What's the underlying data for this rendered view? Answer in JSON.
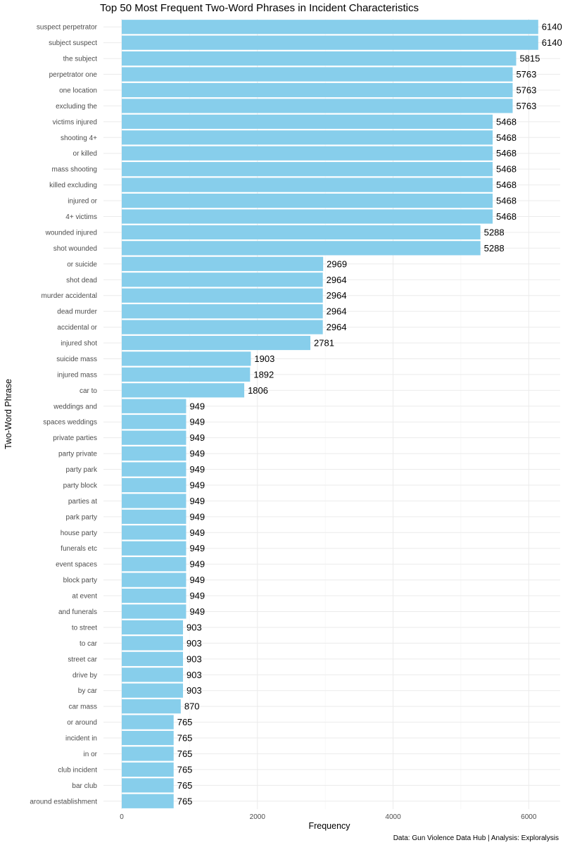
{
  "chart_data": {
    "type": "bar",
    "orientation": "horizontal",
    "title": "Top 50 Most Frequent Two-Word Phrases in Incident Characteristics",
    "xlabel": "Frequency",
    "ylabel": "Two-Word Phrase",
    "caption": "Data: Gun Violence Data Hub | Analysis: Exploralysis",
    "xlim": [
      0,
      6450
    ],
    "x_ticks": [
      0,
      2000,
      4000,
      6000
    ],
    "x_tick_labels": [
      "0",
      "2000",
      "4000",
      "6000"
    ],
    "bar_color": "#87ceeb",
    "grid": true,
    "categories": [
      "suspect perpetrator",
      "subject suspect",
      "the subject",
      "perpetrator one",
      "one location",
      "excluding the",
      "victims injured",
      "shooting 4+",
      "or killed",
      "mass shooting",
      "killed excluding",
      "injured or",
      "4+ victims",
      "wounded injured",
      "shot wounded",
      "or suicide",
      "shot dead",
      "murder accidental",
      "dead murder",
      "accidental or",
      "injured shot",
      "suicide mass",
      "injured mass",
      "car to",
      "weddings and",
      "spaces weddings",
      "private parties",
      "party private",
      "party park",
      "party block",
      "parties at",
      "park party",
      "house party",
      "funerals etc",
      "event spaces",
      "block party",
      "at event",
      "and funerals",
      "to street",
      "to car",
      "street car",
      "drive by",
      "by car",
      "car mass",
      "or around",
      "incident in",
      "in or",
      "club incident",
      "bar club",
      "around establishment"
    ],
    "values": [
      6140,
      6140,
      5815,
      5763,
      5763,
      5763,
      5468,
      5468,
      5468,
      5468,
      5468,
      5468,
      5468,
      5288,
      5288,
      2969,
      2964,
      2964,
      2964,
      2964,
      2781,
      1903,
      1892,
      1806,
      949,
      949,
      949,
      949,
      949,
      949,
      949,
      949,
      949,
      949,
      949,
      949,
      949,
      949,
      903,
      903,
      903,
      903,
      903,
      870,
      765,
      765,
      765,
      765,
      765,
      765
    ]
  }
}
